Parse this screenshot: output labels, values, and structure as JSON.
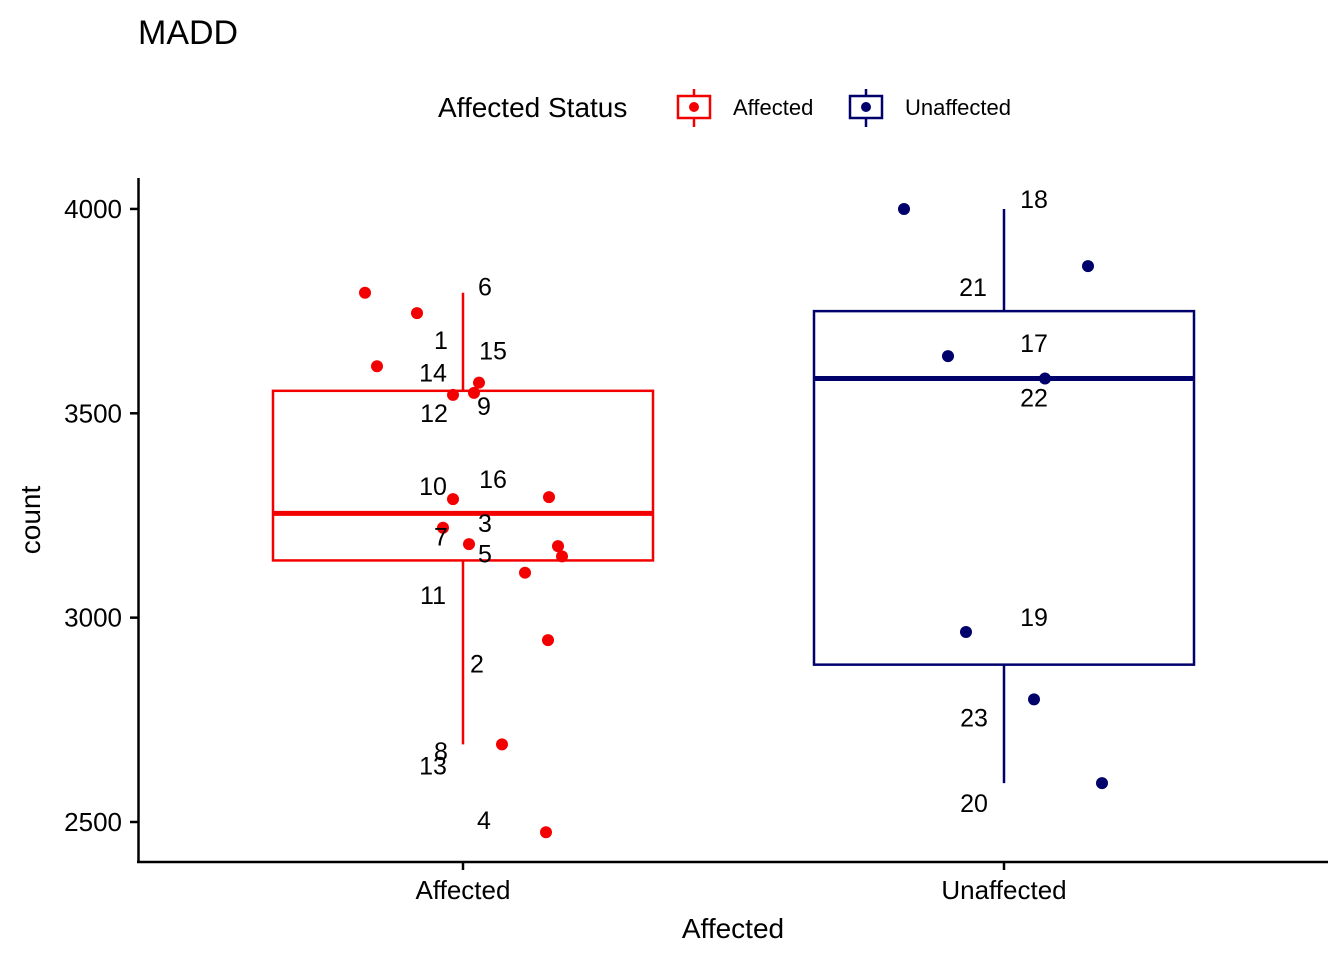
{
  "chart_data": {
    "type": "boxplot",
    "title": "MADD",
    "xlabel": "Affected",
    "ylabel": "count",
    "categories": [
      "Affected",
      "Unaffected"
    ],
    "ylim": [
      2480,
      4080
    ],
    "yticks": [
      2500,
      3000,
      3500,
      4000
    ],
    "grid": false,
    "legend": {
      "title": "Affected Status",
      "position": "top",
      "entries": [
        {
          "name": "Affected",
          "color": "#f30000"
        },
        {
          "name": "Unaffected",
          "color": "#01016c"
        }
      ]
    },
    "boxes": [
      {
        "category": "Affected",
        "color": "#f30000",
        "whisker_low": 2690,
        "q1": 3140,
        "median": 3255,
        "q3": 3555,
        "whisker_high": 3795
      },
      {
        "category": "Unaffected",
        "color": "#01016c",
        "whisker_low": 2595,
        "q1": 2885,
        "median": 3585,
        "q3": 3750,
        "whisker_high": 4000
      }
    ],
    "points": [
      {
        "label": "1",
        "group": "Affected",
        "y": 3745
      },
      {
        "label": "2",
        "group": "Affected",
        "y": 3110
      },
      {
        "label": "3",
        "group": "Affected",
        "y": 3175
      },
      {
        "label": "4",
        "group": "Affected",
        "y": 2475
      },
      {
        "label": "5",
        "group": "Affected",
        "y": 3150
      },
      {
        "label": "6",
        "group": "Affected",
        "y": 3795
      },
      {
        "label": "7",
        "group": "Affected",
        "y": 3220
      },
      {
        "label": "8",
        "group": "Affected",
        "y": 2945
      },
      {
        "label": "9",
        "group": "Affected",
        "y": 3550
      },
      {
        "label": "10",
        "group": "Affected",
        "y": 3290
      },
      {
        "label": "11",
        "group": "Affected",
        "y": 3180
      },
      {
        "label": "12",
        "group": "Affected",
        "y": 3545
      },
      {
        "label": "13",
        "group": "Affected",
        "y": 2690
      },
      {
        "label": "14",
        "group": "Affected",
        "y": 3615
      },
      {
        "label": "15",
        "group": "Affected",
        "y": 3575
      },
      {
        "label": "16",
        "group": "Affected",
        "y": 3295
      },
      {
        "label": "17",
        "group": "Unaffected",
        "y": 3640
      },
      {
        "label": "18",
        "group": "Unaffected",
        "y": 4000
      },
      {
        "label": "19",
        "group": "Unaffected",
        "y": 2965
      },
      {
        "label": "20",
        "group": "Unaffected",
        "y": 2595
      },
      {
        "label": "21",
        "group": "Unaffected",
        "y": 3860
      },
      {
        "label": "22",
        "group": "Unaffected",
        "y": 3585
      },
      {
        "label": "23",
        "group": "Unaffected",
        "y": 2800
      }
    ]
  }
}
